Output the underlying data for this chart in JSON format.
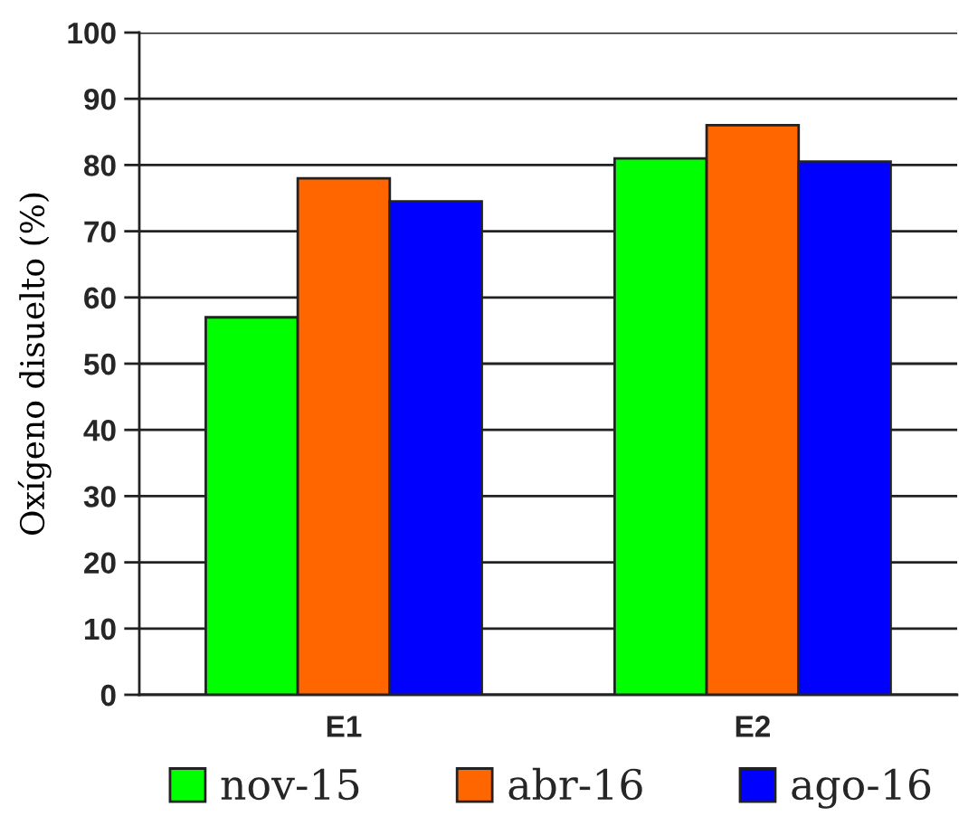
{
  "chart_data": {
    "type": "bar",
    "ylabel": "Oxígeno disuelto (%)",
    "categories": [
      "E1",
      "E2"
    ],
    "series": [
      {
        "name": "nov-15",
        "color": "#00ff00",
        "values": [
          57,
          81
        ]
      },
      {
        "name": "abr-16",
        "color": "#ff6600",
        "values": [
          78,
          86
        ]
      },
      {
        "name": "ago-16",
        "color": "#0000ff",
        "values": [
          74.5,
          80.5
        ]
      }
    ],
    "ylim": [
      0,
      100
    ],
    "yticks": [
      0,
      10,
      20,
      30,
      40,
      50,
      60,
      70,
      80,
      90,
      100
    ],
    "grid": "y",
    "legend": "bottom"
  }
}
